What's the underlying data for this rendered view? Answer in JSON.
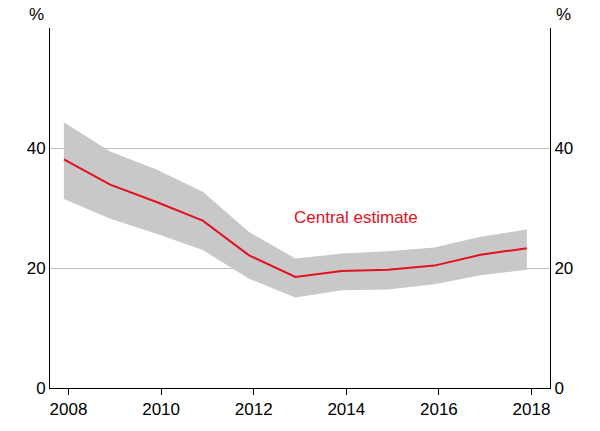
{
  "chart_data": {
    "type": "line",
    "x": [
      2007.9,
      2008.9,
      2009.9,
      2010.9,
      2011.9,
      2012.9,
      2013.9,
      2014.9,
      2015.9,
      2016.9,
      2017.9
    ],
    "xlim": [
      2007.6,
      2018.4
    ],
    "xticks": [
      2008,
      2010,
      2012,
      2014,
      2016,
      2018
    ],
    "ylim": [
      0,
      60
    ],
    "yticks": [
      0,
      20,
      40
    ],
    "y_label": "%",
    "y2lim": [
      0,
      60
    ],
    "y2ticks": [
      0,
      20,
      40
    ],
    "y2_label": "%",
    "grid": true,
    "series": [
      {
        "color": "#e3101e",
        "values": [
          38.1,
          33.9,
          31.0,
          27.9,
          22.1,
          18.5,
          19.5,
          19.7,
          20.4,
          22.2,
          23.3
        ],
        "band": {
          "color": "#c8c8c8",
          "lower": [
            31.5,
            28.2,
            25.7,
            23.0,
            18.2,
            15.1,
            16.3,
            16.4,
            17.3,
            18.8,
            19.7
          ],
          "upper": [
            44.3,
            39.4,
            36.4,
            32.7,
            26.0,
            21.6,
            22.4,
            22.8,
            23.4,
            25.2,
            26.4
          ]
        }
      }
    ],
    "annotations": [
      {
        "text": "Central estimate",
        "x": 2014.2,
        "y": 28.5,
        "color": "#e3101e"
      }
    ]
  }
}
